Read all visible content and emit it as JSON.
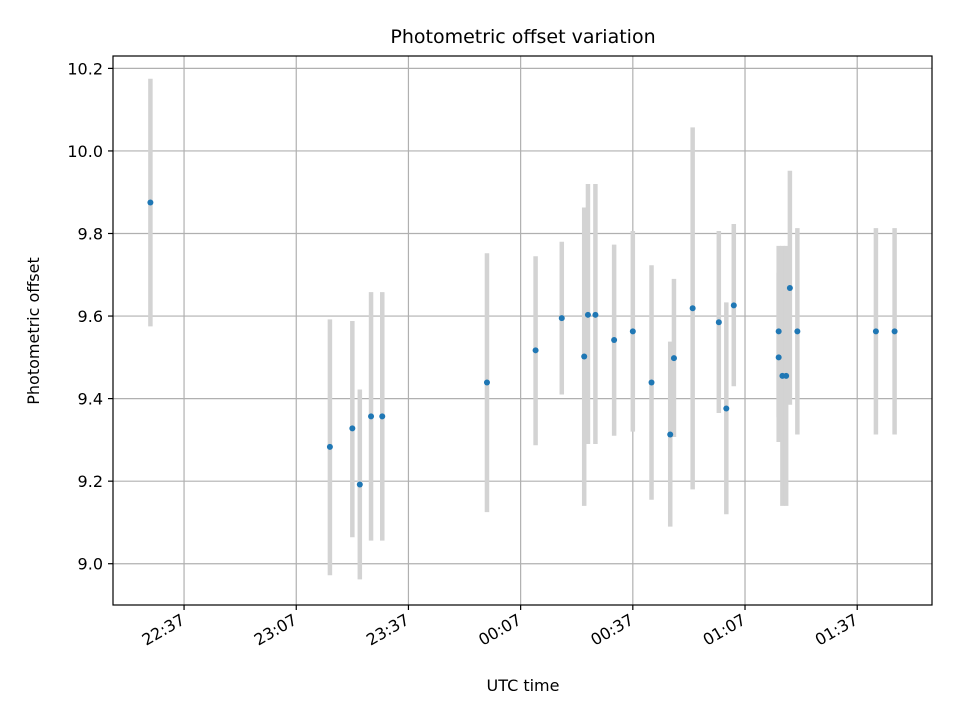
{
  "chart_data": {
    "type": "scatter",
    "title": "Photometric offset variation",
    "xlabel": "UTC time",
    "ylabel": "Photometric offset",
    "x_unit": "UTC clock time, crossing midnight",
    "x_ticks": [
      "22:37",
      "23:07",
      "23:37",
      "00:07",
      "00:37",
      "01:07",
      "01:37"
    ],
    "xlim": [
      "22:18",
      "01:57"
    ],
    "y_ticks": [
      "9.0",
      "9.2",
      "9.4",
      "9.6",
      "9.8",
      "10.0",
      "10.2"
    ],
    "ylim": [
      8.9,
      10.23
    ],
    "grid": true,
    "colors": {
      "point": "#1f77b4",
      "errorbar": "#d3d3d3",
      "grid": "#b0b0b0",
      "axes": "#000000"
    },
    "series": [
      {
        "points": [
          {
            "x": "22:28",
            "y": 9.875,
            "ylow": 9.575,
            "yhigh": 10.175
          },
          {
            "x": "23:16",
            "y": 9.283,
            "ylow": 8.972,
            "yhigh": 9.592
          },
          {
            "x": "23:22",
            "y": 9.328,
            "ylow": 9.064,
            "yhigh": 9.588
          },
          {
            "x": "23:24",
            "y": 9.192,
            "ylow": 8.962,
            "yhigh": 9.422
          },
          {
            "x": "23:27",
            "y": 9.357,
            "ylow": 9.056,
            "yhigh": 9.658
          },
          {
            "x": "23:30",
            "y": 9.357,
            "ylow": 9.056,
            "yhigh": 9.658
          },
          {
            "x": "23:58",
            "y": 9.439,
            "ylow": 9.125,
            "yhigh": 9.752
          },
          {
            "x": "00:11",
            "y": 9.517,
            "ylow": 9.287,
            "yhigh": 9.745
          },
          {
            "x": "00:18",
            "y": 9.595,
            "ylow": 9.41,
            "yhigh": 9.78
          },
          {
            "x": "00:24",
            "y": 9.502,
            "ylow": 9.14,
            "yhigh": 9.863
          },
          {
            "x": "00:25",
            "y": 9.603,
            "ylow": 9.29,
            "yhigh": 9.92
          },
          {
            "x": "00:27",
            "y": 9.603,
            "ylow": 9.29,
            "yhigh": 9.92
          },
          {
            "x": "00:32",
            "y": 9.542,
            "ylow": 9.31,
            "yhigh": 9.773
          },
          {
            "x": "00:37",
            "y": 9.563,
            "ylow": 9.32,
            "yhigh": 9.806
          },
          {
            "x": "00:42",
            "y": 9.439,
            "ylow": 9.155,
            "yhigh": 9.723
          },
          {
            "x": "00:47",
            "y": 9.313,
            "ylow": 9.09,
            "yhigh": 9.538
          },
          {
            "x": "00:48",
            "y": 9.498,
            "ylow": 9.307,
            "yhigh": 9.69
          },
          {
            "x": "00:53",
            "y": 9.619,
            "ylow": 9.18,
            "yhigh": 10.057
          },
          {
            "x": "01:00",
            "y": 9.585,
            "ylow": 9.365,
            "yhigh": 9.806
          },
          {
            "x": "01:02",
            "y": 9.376,
            "ylow": 9.12,
            "yhigh": 9.633
          },
          {
            "x": "01:04",
            "y": 9.626,
            "ylow": 9.43,
            "yhigh": 9.823
          },
          {
            "x": "01:16",
            "y": 9.563,
            "ylow": 9.355,
            "yhigh": 9.77
          },
          {
            "x": "01:16",
            "y": 9.5,
            "ylow": 9.295,
            "yhigh": 9.705
          },
          {
            "x": "01:17",
            "y": 9.455,
            "ylow": 9.14,
            "yhigh": 9.77
          },
          {
            "x": "01:18",
            "y": 9.455,
            "ylow": 9.14,
            "yhigh": 9.77
          },
          {
            "x": "01:19",
            "y": 9.668,
            "ylow": 9.385,
            "yhigh": 9.952
          },
          {
            "x": "01:21",
            "y": 9.563,
            "ylow": 9.313,
            "yhigh": 9.813
          },
          {
            "x": "01:42",
            "y": 9.563,
            "ylow": 9.313,
            "yhigh": 9.813
          },
          {
            "x": "01:47",
            "y": 9.563,
            "ylow": 9.313,
            "yhigh": 9.813
          }
        ]
      }
    ]
  }
}
